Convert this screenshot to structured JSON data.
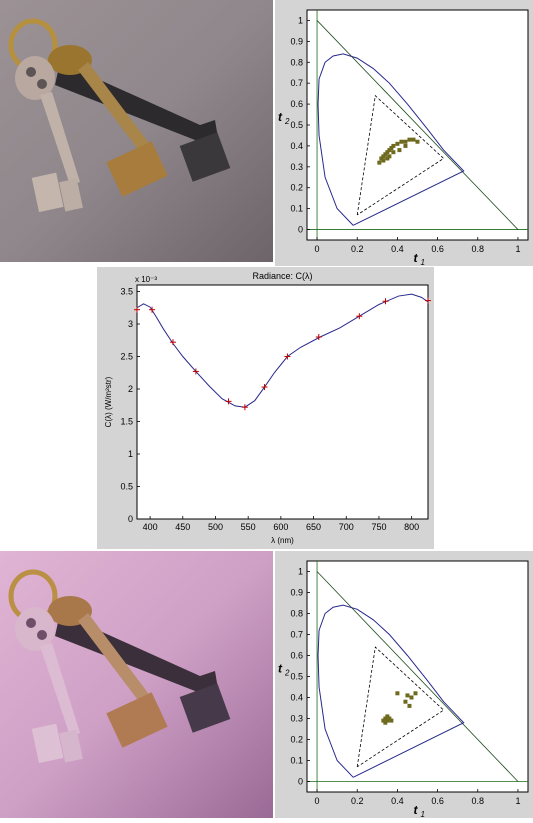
{
  "chart_data": [
    {
      "type": "scatter",
      "title": "",
      "xlabel": "t",
      "xlabel_sub": "1",
      "ylabel": "t",
      "ylabel_sub": "2",
      "xlim": [
        -0.05,
        1.05
      ],
      "ylim": [
        -0.05,
        1.05
      ],
      "x_ticks": [
        "0",
        "0.2",
        "0.4",
        "0.6",
        "0.8",
        "1"
      ],
      "y_ticks": [
        "0",
        "0.1",
        "0.2",
        "0.3",
        "0.4",
        "0.5",
        "0.6",
        "0.7",
        "0.8",
        "0.9",
        "1"
      ],
      "grid": false,
      "points": [
        {
          "x": 0.31,
          "y": 0.32
        },
        {
          "x": 0.32,
          "y": 0.34
        },
        {
          "x": 0.33,
          "y": 0.35
        },
        {
          "x": 0.34,
          "y": 0.36
        },
        {
          "x": 0.35,
          "y": 0.37
        },
        {
          "x": 0.36,
          "y": 0.38
        },
        {
          "x": 0.37,
          "y": 0.39
        },
        {
          "x": 0.38,
          "y": 0.4
        },
        {
          "x": 0.4,
          "y": 0.41
        },
        {
          "x": 0.42,
          "y": 0.42
        },
        {
          "x": 0.44,
          "y": 0.42
        },
        {
          "x": 0.46,
          "y": 0.43
        },
        {
          "x": 0.48,
          "y": 0.43
        },
        {
          "x": 0.5,
          "y": 0.42
        },
        {
          "x": 0.33,
          "y": 0.33
        },
        {
          "x": 0.35,
          "y": 0.34
        },
        {
          "x": 0.36,
          "y": 0.35
        },
        {
          "x": 0.38,
          "y": 0.37
        },
        {
          "x": 0.41,
          "y": 0.38
        },
        {
          "x": 0.44,
          "y": 0.4
        }
      ]
    },
    {
      "type": "line",
      "title": "Radiance:  C(λ)",
      "xlabel": "λ (nm)",
      "ylabel": "C(λ) (W/m²str)",
      "y_exponent_label": "x 10⁻³",
      "xlim": [
        380,
        825
      ],
      "ylim": [
        0,
        3.6
      ],
      "x_ticks": [
        "400",
        "450",
        "500",
        "550",
        "600",
        "650",
        "700",
        "750",
        "800"
      ],
      "y_ticks": [
        "0",
        "0.5",
        "1",
        "1.5",
        "2",
        "2.5",
        "3",
        "3.5"
      ],
      "grid": false,
      "series": [
        {
          "x": [
            380,
            390,
            400,
            410,
            420,
            435,
            450,
            470,
            490,
            510,
            530,
            545,
            560,
            575,
            590,
            610,
            630,
            660,
            690,
            720,
            750,
            780,
            800,
            815,
            825
          ],
          "y": [
            3.25,
            3.31,
            3.26,
            3.1,
            2.93,
            2.7,
            2.5,
            2.27,
            2.05,
            1.85,
            1.74,
            1.72,
            1.82,
            2.03,
            2.25,
            2.5,
            2.64,
            2.8,
            2.94,
            3.12,
            3.3,
            3.43,
            3.46,
            3.41,
            3.34
          ]
        }
      ],
      "markers": [
        {
          "x": 380,
          "y": 3.22
        },
        {
          "x": 403,
          "y": 3.22
        },
        {
          "x": 435,
          "y": 2.72
        },
        {
          "x": 470,
          "y": 2.27
        },
        {
          "x": 520,
          "y": 1.81
        },
        {
          "x": 545,
          "y": 1.72
        },
        {
          "x": 575,
          "y": 2.03
        },
        {
          "x": 610,
          "y": 2.5
        },
        {
          "x": 658,
          "y": 2.8
        },
        {
          "x": 720,
          "y": 3.12
        },
        {
          "x": 760,
          "y": 3.35
        },
        {
          "x": 825,
          "y": 3.36
        }
      ]
    },
    {
      "type": "scatter",
      "title": "",
      "xlabel": "t",
      "xlabel_sub": "1",
      "ylabel": "t",
      "ylabel_sub": "2",
      "xlim": [
        -0.05,
        1.05
      ],
      "ylim": [
        -0.05,
        1.05
      ],
      "x_ticks": [
        "0",
        "0.2",
        "0.4",
        "0.6",
        "0.8",
        "1"
      ],
      "y_ticks": [
        "0",
        "0.1",
        "0.2",
        "0.3",
        "0.4",
        "0.5",
        "0.6",
        "0.7",
        "0.8",
        "0.9",
        "1"
      ],
      "grid": false,
      "points": [
        {
          "x": 0.34,
          "y": 0.28
        },
        {
          "x": 0.35,
          "y": 0.29
        },
        {
          "x": 0.34,
          "y": 0.3
        },
        {
          "x": 0.36,
          "y": 0.3
        },
        {
          "x": 0.35,
          "y": 0.31
        },
        {
          "x": 0.37,
          "y": 0.29
        },
        {
          "x": 0.33,
          "y": 0.29
        },
        {
          "x": 0.4,
          "y": 0.42
        },
        {
          "x": 0.44,
          "y": 0.38
        },
        {
          "x": 0.45,
          "y": 0.41
        },
        {
          "x": 0.46,
          "y": 0.36
        },
        {
          "x": 0.49,
          "y": 0.42
        },
        {
          "x": 0.47,
          "y": 0.4
        }
      ]
    }
  ],
  "colors": {
    "plot_panel_bg": "#d4d4d4",
    "curve": "#28288c",
    "marker": "#c00000",
    "points": "#6e6a1e",
    "tinted_photo_bg": "#d8a8cc",
    "plain_photo_bg": "#8a8286"
  }
}
